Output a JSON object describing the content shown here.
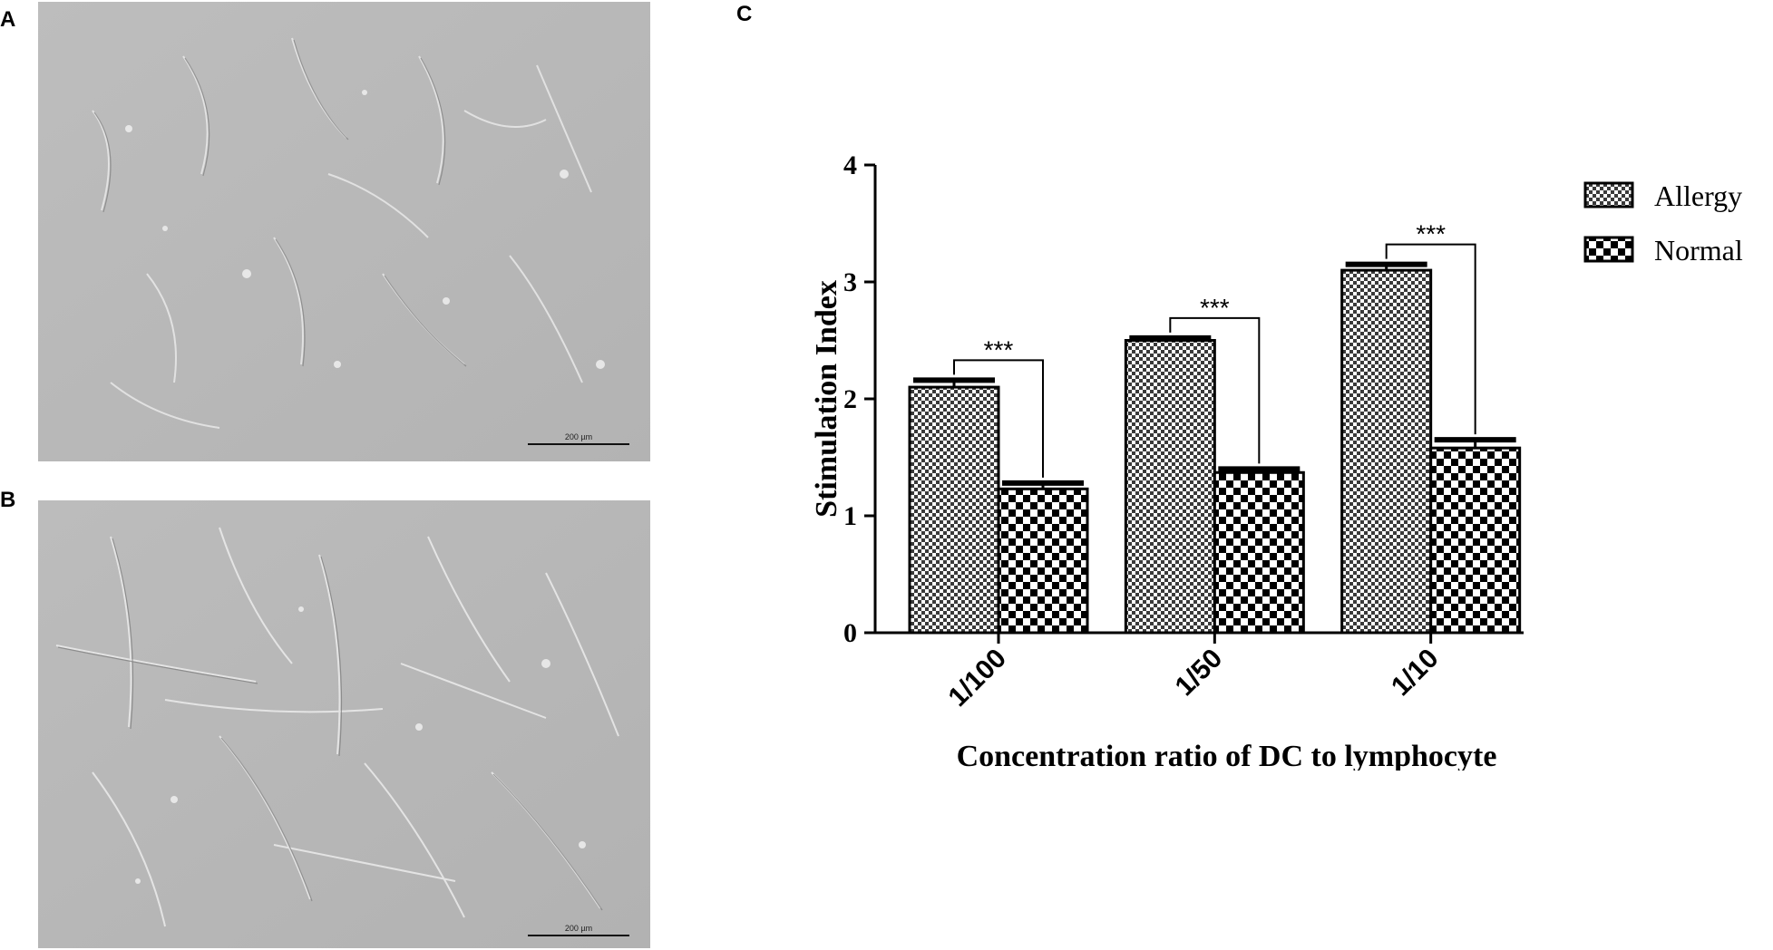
{
  "panels": {
    "a_label": "A",
    "b_label": "B",
    "c_label": "C",
    "a_scale_bar": "200 µm",
    "b_scale_bar": "200 µm"
  },
  "chart_data": {
    "type": "bar",
    "categories": [
      "1/100",
      "1/50",
      "1/10"
    ],
    "series": [
      {
        "name": "Allergy",
        "values": [
          2.1,
          2.5,
          3.1
        ],
        "errors": [
          0.06,
          0.02,
          0.05
        ],
        "pattern": "fine-checker"
      },
      {
        "name": "Normal",
        "values": [
          1.23,
          1.37,
          1.58
        ],
        "errors": [
          0.05,
          0.03,
          0.07
        ],
        "pattern": "coarse-checker"
      }
    ],
    "significance": [
      "***",
      "***",
      "***"
    ],
    "xlabel": "Concentration ratio of DC to lymphocyte",
    "ylabel": "Stimulation Index",
    "ylim": [
      0,
      4
    ],
    "yticks": [
      "0",
      "1",
      "2",
      "3",
      "4"
    ],
    "legend_position": "top-right",
    "grid": false
  }
}
